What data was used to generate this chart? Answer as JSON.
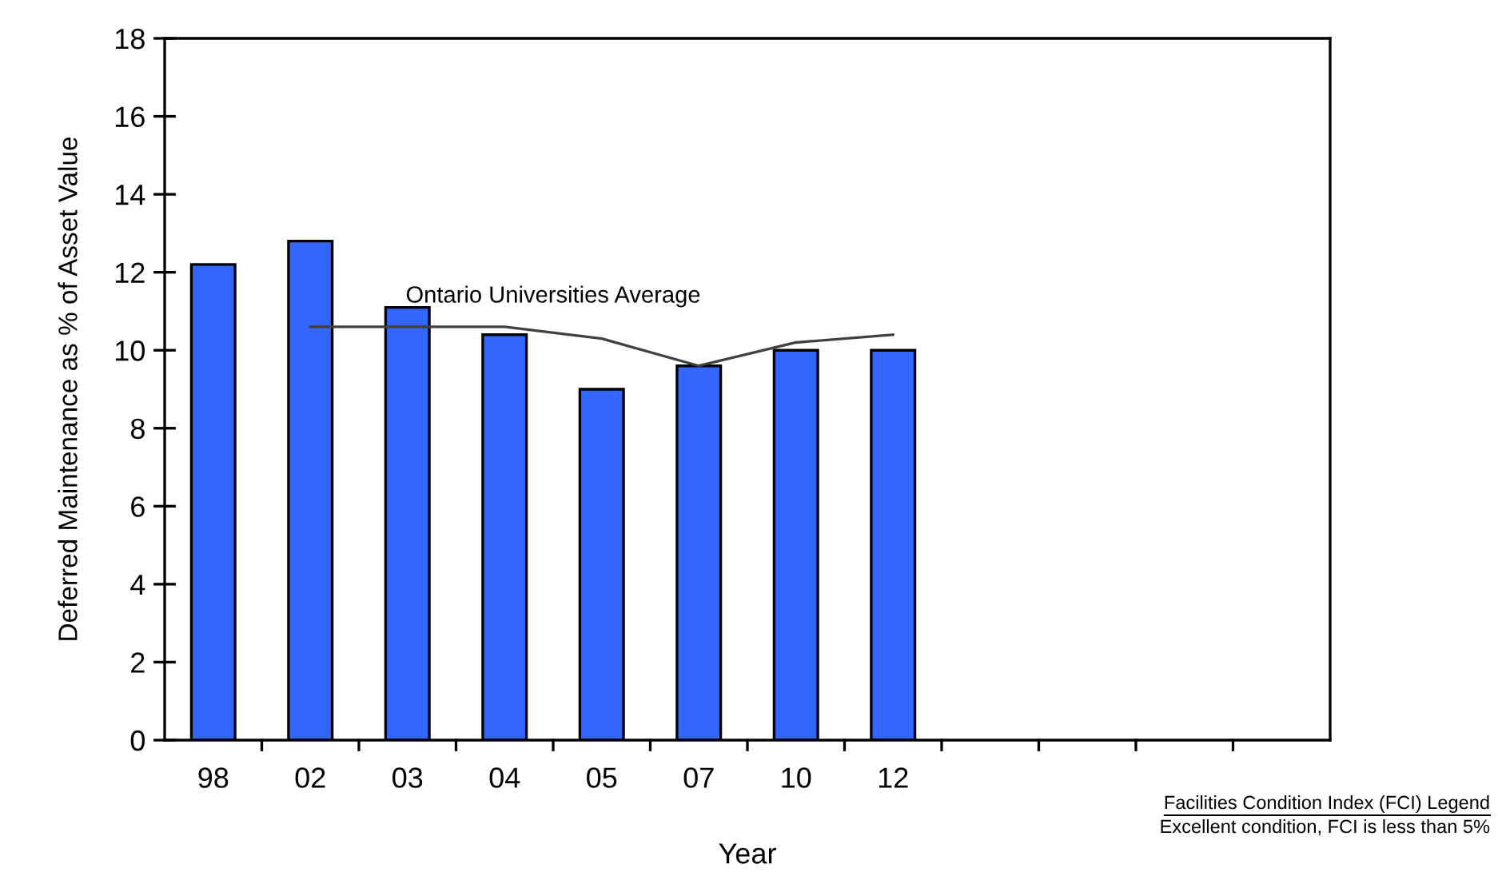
{
  "chart_data": {
    "type": "bar",
    "xlabel": "Year",
    "ylabel": "Deferred Maintenance as % of Asset Value",
    "categories": [
      "98",
      "02",
      "03",
      "04",
      "05",
      "07",
      "10",
      "12",
      null,
      null,
      null,
      null
    ],
    "series": [
      {
        "color": "#3366ff",
        "values": [
          12.2,
          12.8,
          11.1,
          10.4,
          9.0,
          9.6,
          10.0,
          10.0,
          null,
          null,
          null,
          null
        ]
      },
      {
        "type": "line",
        "name": "Ontario Universities Average",
        "color": "#404040",
        "values": [
          null,
          10.6,
          10.6,
          10.6,
          10.3,
          9.6,
          10.2,
          10.4,
          null,
          null,
          null,
          null
        ]
      }
    ],
    "ylim": [
      0,
      18
    ],
    "yticks": [
      0,
      2,
      4,
      6,
      8,
      10,
      12,
      14,
      16,
      18
    ],
    "grid": false,
    "legend": false,
    "annotations": [
      "Facilities Condition Index (FCI) Legend",
      "Excellent condition, FCI is less than 5%"
    ]
  }
}
